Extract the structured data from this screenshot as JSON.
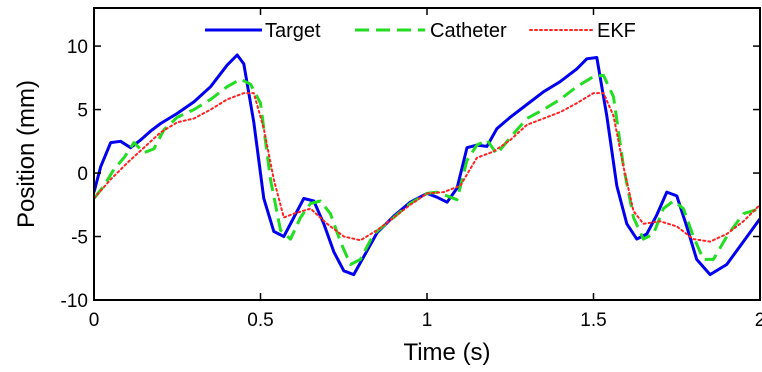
{
  "chart_data": {
    "type": "line",
    "xlabel": "Time (s)",
    "ylabel": "Position (mm)",
    "xlim": [
      0,
      2
    ],
    "ylim": [
      -10,
      13
    ],
    "xticks": [
      0,
      0.5,
      1,
      1.5,
      2
    ],
    "xtick_labels": [
      "0",
      "0.5",
      "1",
      "1.5",
      "2"
    ],
    "yticks": [
      -10,
      -5,
      0,
      5,
      10
    ],
    "ytick_labels": [
      "-10",
      "-5",
      "0",
      "5",
      "10"
    ],
    "grid": false,
    "legend_position": "top",
    "series": [
      {
        "name": "Target",
        "color": "#0000ee",
        "style": "solid",
        "x": [
          0,
          0.02,
          0.05,
          0.08,
          0.11,
          0.14,
          0.17,
          0.2,
          0.25,
          0.3,
          0.35,
          0.4,
          0.43,
          0.45,
          0.48,
          0.51,
          0.54,
          0.57,
          0.6,
          0.63,
          0.66,
          0.69,
          0.72,
          0.75,
          0.78,
          0.81,
          0.85,
          0.9,
          0.95,
          1.0,
          1.03,
          1.06,
          1.09,
          1.12,
          1.15,
          1.18,
          1.21,
          1.25,
          1.3,
          1.35,
          1.4,
          1.45,
          1.48,
          1.51,
          1.54,
          1.57,
          1.6,
          1.63,
          1.66,
          1.69,
          1.72,
          1.75,
          1.78,
          1.81,
          1.85,
          1.9,
          1.95,
          2.0
        ],
        "y": [
          -1.5,
          0.5,
          2.4,
          2.5,
          2.0,
          2.6,
          3.3,
          3.9,
          4.7,
          5.6,
          6.8,
          8.5,
          9.3,
          8.6,
          4.0,
          -2.0,
          -4.6,
          -5.0,
          -3.5,
          -2.0,
          -2.2,
          -4.0,
          -6.2,
          -7.7,
          -8.0,
          -6.6,
          -4.7,
          -3.4,
          -2.3,
          -1.6,
          -1.9,
          -2.3,
          -1.2,
          2.0,
          2.2,
          2.1,
          3.5,
          4.4,
          5.4,
          6.4,
          7.2,
          8.2,
          9.0,
          9.1,
          4.5,
          -1.0,
          -4.0,
          -5.2,
          -4.8,
          -3.3,
          -1.5,
          -1.8,
          -4.2,
          -6.8,
          -8.0,
          -7.2,
          -5.4,
          -3.6
        ]
      },
      {
        "name": "Catheter",
        "color": "#22dd22",
        "style": "dashed",
        "x": [
          0,
          0.03,
          0.06,
          0.09,
          0.12,
          0.15,
          0.18,
          0.21,
          0.25,
          0.3,
          0.35,
          0.4,
          0.44,
          0.47,
          0.5,
          0.53,
          0.56,
          0.59,
          0.62,
          0.65,
          0.68,
          0.71,
          0.74,
          0.77,
          0.8,
          0.84,
          0.9,
          0.95,
          1.0,
          1.03,
          1.06,
          1.09,
          1.12,
          1.15,
          1.18,
          1.21,
          1.25,
          1.3,
          1.35,
          1.4,
          1.45,
          1.5,
          1.53,
          1.56,
          1.59,
          1.62,
          1.65,
          1.68,
          1.71,
          1.74,
          1.77,
          1.8,
          1.83,
          1.86,
          1.9,
          1.95,
          2.0
        ],
        "y": [
          -2.0,
          -1.0,
          0.3,
          1.2,
          2.4,
          1.6,
          1.9,
          3.4,
          4.4,
          5.0,
          5.8,
          6.8,
          7.4,
          7.0,
          5.5,
          -0.5,
          -4.5,
          -5.2,
          -3.5,
          -2.4,
          -2.2,
          -3.2,
          -5.4,
          -7.2,
          -6.8,
          -4.8,
          -3.5,
          -2.4,
          -1.6,
          -1.5,
          -1.8,
          -2.1,
          1.0,
          2.2,
          2.6,
          1.5,
          2.8,
          4.3,
          5.0,
          5.8,
          6.8,
          7.6,
          7.7,
          6.0,
          0.5,
          -3.5,
          -5.2,
          -4.8,
          -2.8,
          -2.2,
          -2.8,
          -5.0,
          -6.8,
          -6.8,
          -5.0,
          -3.2,
          -2.8
        ]
      },
      {
        "name": "EKF",
        "color": "#ff2222",
        "style": "dotted",
        "x": [
          0,
          0.05,
          0.1,
          0.15,
          0.2,
          0.25,
          0.3,
          0.35,
          0.4,
          0.45,
          0.48,
          0.51,
          0.54,
          0.57,
          0.6,
          0.65,
          0.7,
          0.75,
          0.8,
          0.85,
          0.9,
          0.95,
          1.0,
          1.05,
          1.1,
          1.15,
          1.2,
          1.25,
          1.3,
          1.35,
          1.4,
          1.45,
          1.5,
          1.53,
          1.56,
          1.59,
          1.62,
          1.65,
          1.7,
          1.75,
          1.8,
          1.85,
          1.9,
          1.95,
          2.0
        ],
        "y": [
          -2.0,
          -0.5,
          0.8,
          2.0,
          3.2,
          4.0,
          4.3,
          5.0,
          5.8,
          6.3,
          6.3,
          3.5,
          -0.5,
          -3.5,
          -3.2,
          -2.8,
          -4.0,
          -5.0,
          -5.3,
          -4.5,
          -3.5,
          -2.5,
          -1.6,
          -1.5,
          -1.0,
          1.2,
          1.7,
          2.6,
          3.8,
          4.3,
          4.8,
          5.5,
          6.3,
          6.3,
          4.5,
          0.5,
          -3.0,
          -4.0,
          -3.8,
          -4.2,
          -5.2,
          -5.4,
          -4.8,
          -3.8,
          -2.5
        ]
      }
    ]
  }
}
